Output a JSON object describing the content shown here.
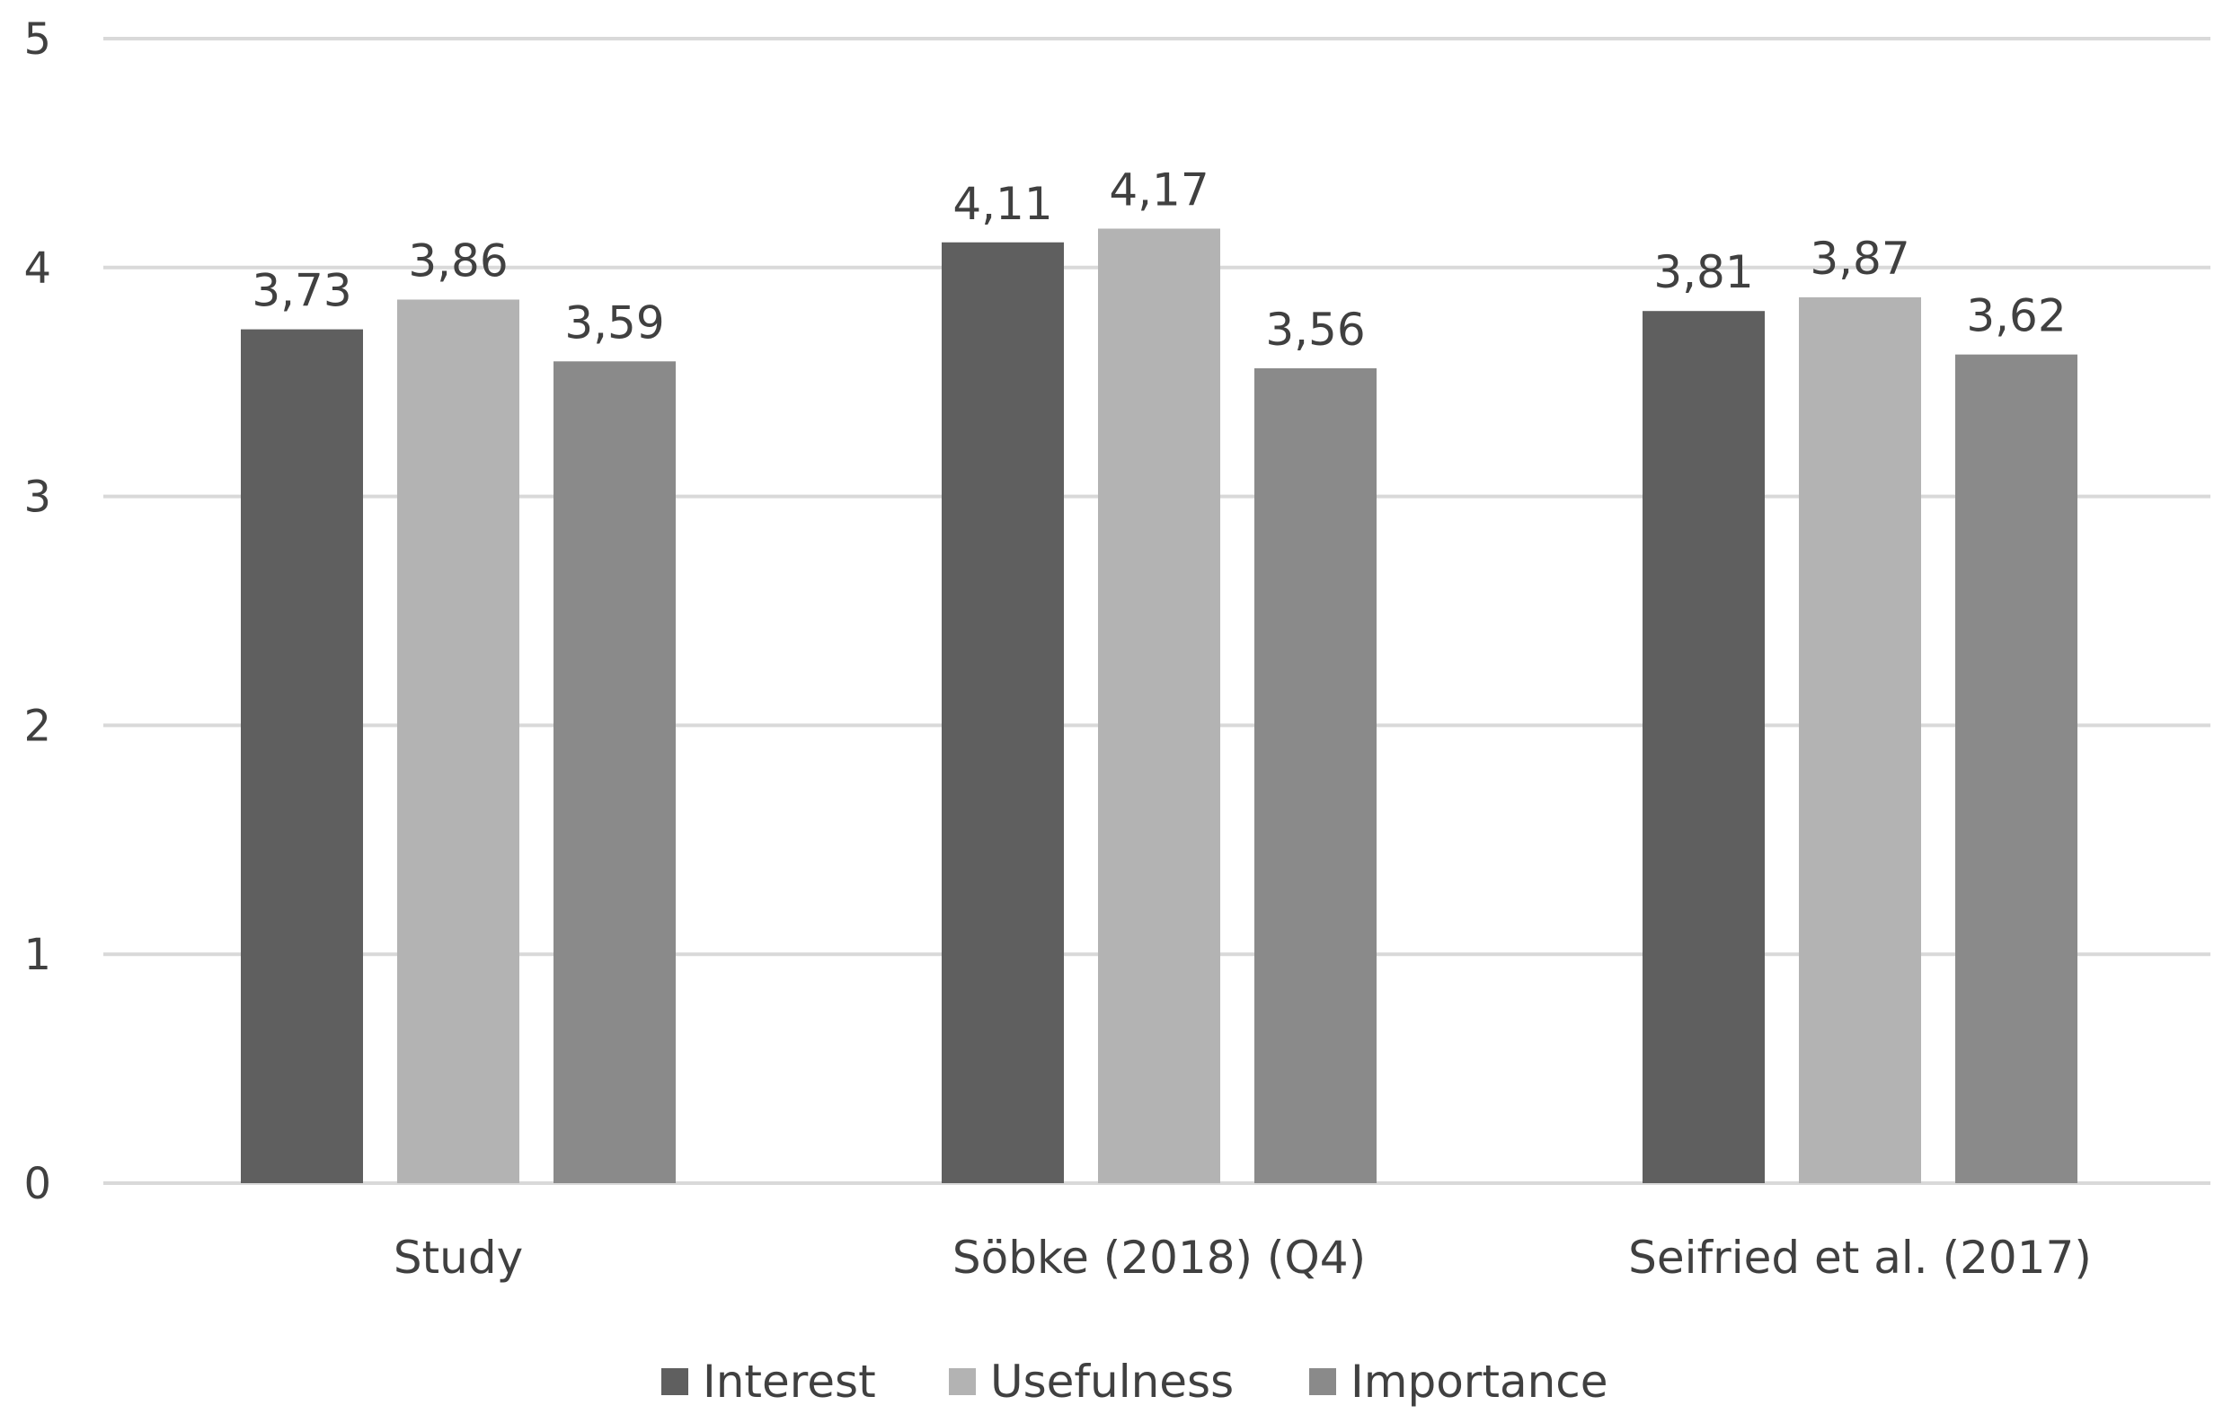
{
  "chart_data": {
    "type": "bar",
    "title": "",
    "xlabel": "",
    "ylabel": "",
    "ylim": [
      0,
      5
    ],
    "yticks": [
      "0",
      "1",
      "2",
      "3",
      "4",
      "5"
    ],
    "grid": true,
    "legend_position": "bottom",
    "categories": [
      "Study",
      "Söbke (2018) (Q4)",
      "Seifried et al. (2017)"
    ],
    "series": [
      {
        "name": "Interest",
        "color": "#5f5f5f",
        "values": [
          3.73,
          4.11,
          3.81
        ],
        "labels": [
          "3,73",
          "4,11",
          "3,81"
        ]
      },
      {
        "name": "Usefulness",
        "color": "#b3b3b3",
        "values": [
          3.86,
          4.17,
          3.87
        ],
        "labels": [
          "3,86",
          "4,17",
          "3,87"
        ]
      },
      {
        "name": "Importance",
        "color": "#8a8a8a",
        "values": [
          3.59,
          3.56,
          3.62
        ],
        "labels": [
          "3,59",
          "3,56",
          "3,62"
        ]
      }
    ]
  }
}
